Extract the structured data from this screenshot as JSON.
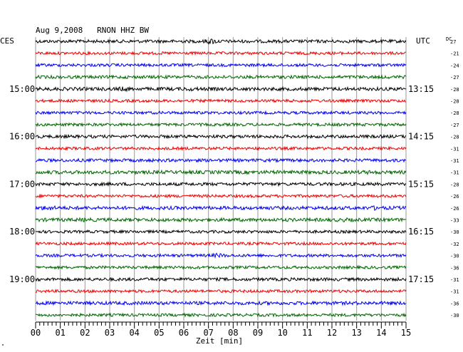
{
  "chart_data": {
    "type": "line",
    "title": "Aug 9,2008   RNON HHZ BW",
    "left_label": "CES",
    "right_label": "UTC",
    "dc_label": "DC",
    "xlabel": "Zeit [min]",
    "xlim": [
      0,
      15
    ],
    "x_ticks": [
      "00",
      "01",
      "02",
      "03",
      "04",
      "05",
      "06",
      "07",
      "08",
      "09",
      "10",
      "11",
      "12",
      "13",
      "14",
      "15"
    ],
    "grid": true,
    "trace_colors": [
      "#000000",
      "#ee0000",
      "#0000ee",
      "#006600"
    ],
    "left_hour_labels": [
      {
        "row": 4,
        "text": "15:00"
      },
      {
        "row": 8,
        "text": "16:00"
      },
      {
        "row": 12,
        "text": "17:00"
      },
      {
        "row": 16,
        "text": "18:00"
      },
      {
        "row": 20,
        "text": "19:00"
      }
    ],
    "right_hour_labels": [
      {
        "row": 4,
        "text": "13:15"
      },
      {
        "row": 8,
        "text": "14:15"
      },
      {
        "row": 12,
        "text": "15:15"
      },
      {
        "row": 16,
        "text": "16:15"
      },
      {
        "row": 20,
        "text": "17:15"
      }
    ],
    "dc_offsets": [
      "27",
      "-21",
      "-24",
      "-27",
      "-28",
      "-28",
      "-28",
      "-27",
      "-28",
      "-31",
      "-31",
      "-31",
      "-28",
      "-26",
      "-26",
      "-33",
      "-30",
      "-32",
      "-30",
      "-36",
      "-31",
      "-31",
      "-36",
      "-30"
    ],
    "traces": [
      {
        "amp": 2.2,
        "events": [
          {
            "min": 7.1,
            "amp": 4.5
          }
        ]
      },
      {
        "amp": 2.0,
        "events": []
      },
      {
        "amp": 2.0,
        "events": []
      },
      {
        "amp": 2.2,
        "events": []
      },
      {
        "amp": 2.4,
        "events": [
          {
            "min": 3.6,
            "amp": 3.5
          },
          {
            "min": 6.3,
            "amp": 3
          }
        ]
      },
      {
        "amp": 2.0,
        "events": []
      },
      {
        "amp": 2.0,
        "events": []
      },
      {
        "amp": 2.0,
        "events": []
      },
      {
        "amp": 2.2,
        "events": []
      },
      {
        "amp": 2.0,
        "events": []
      },
      {
        "amp": 2.2,
        "events": []
      },
      {
        "amp": 2.5,
        "events": [
          {
            "min": 13.5,
            "amp": 3
          }
        ]
      },
      {
        "amp": 2.2,
        "events": []
      },
      {
        "amp": 2.0,
        "events": []
      },
      {
        "amp": 2.4,
        "events": [
          {
            "min": 0.5,
            "amp": 4
          },
          {
            "min": 13.8,
            "amp": 3.5
          }
        ]
      },
      {
        "amp": 2.4,
        "events": [
          {
            "min": 2.0,
            "amp": 3
          },
          {
            "min": 12.5,
            "amp": 3
          }
        ]
      },
      {
        "amp": 2.0,
        "events": []
      },
      {
        "amp": 2.0,
        "events": []
      },
      {
        "amp": 2.0,
        "events": [
          {
            "min": 7.4,
            "amp": 3.5
          }
        ]
      },
      {
        "amp": 2.0,
        "events": []
      },
      {
        "amp": 2.2,
        "events": []
      },
      {
        "amp": 2.0,
        "events": []
      },
      {
        "amp": 2.4,
        "events": []
      },
      {
        "amp": 2.0,
        "events": []
      }
    ]
  },
  "corner_mark": "\""
}
